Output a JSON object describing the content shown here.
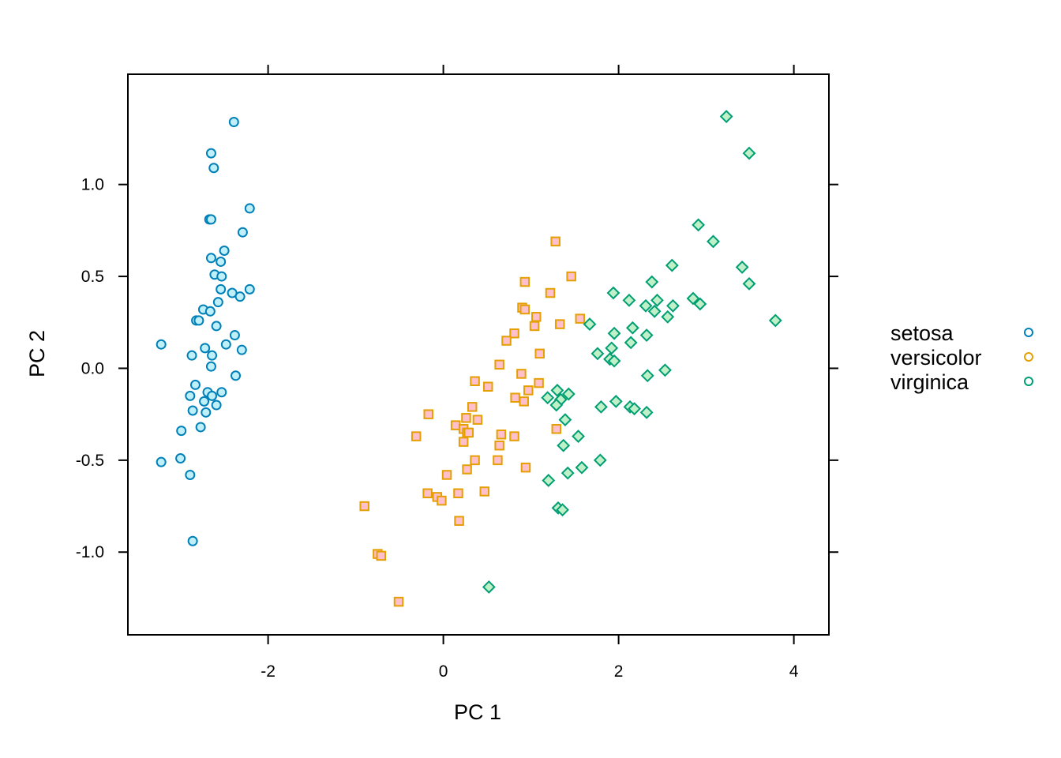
{
  "chart_data": {
    "type": "scatter",
    "xlabel": "PC 1",
    "ylabel": "PC 2",
    "xlim": [
      -3.6,
      4.4
    ],
    "ylim": [
      -1.45,
      1.6
    ],
    "x_ticks": [
      {
        "value": -2,
        "label": "-2"
      },
      {
        "value": 0,
        "label": "0"
      },
      {
        "value": 2,
        "label": "2"
      },
      {
        "value": 4,
        "label": "4"
      }
    ],
    "y_ticks": [
      {
        "value": -1.0,
        "label": "-1.0"
      },
      {
        "value": -0.5,
        "label": "-0.5"
      },
      {
        "value": 0.0,
        "label": "0.0"
      },
      {
        "value": 0.5,
        "label": "0.5"
      },
      {
        "value": 1.0,
        "label": "1.0"
      }
    ],
    "grid": false,
    "legend_position": "right",
    "legend": [
      {
        "label": "setosa",
        "series_index": 0
      },
      {
        "label": "versicolor",
        "series_index": 1
      },
      {
        "label": "virginica",
        "series_index": 2
      }
    ],
    "series": [
      {
        "name": "setosa",
        "marker": "circle",
        "color": "#0080B8",
        "fill": "#BFEFF8",
        "legend_fill": "none",
        "points": [
          [
            -3.22,
            0.13
          ],
          [
            -2.39,
            1.34
          ],
          [
            -2.65,
            1.17
          ],
          [
            -2.62,
            1.09
          ],
          [
            -2.21,
            0.87
          ],
          [
            -2.67,
            0.81
          ],
          [
            -2.65,
            0.81
          ],
          [
            -2.29,
            0.74
          ],
          [
            -2.5,
            0.64
          ],
          [
            -2.65,
            0.6
          ],
          [
            -2.54,
            0.58
          ],
          [
            -2.61,
            0.51
          ],
          [
            -2.53,
            0.5
          ],
          [
            -2.54,
            0.43
          ],
          [
            -2.21,
            0.43
          ],
          [
            -2.41,
            0.41
          ],
          [
            -2.32,
            0.39
          ],
          [
            -2.57,
            0.36
          ],
          [
            -2.74,
            0.32
          ],
          [
            -2.66,
            0.31
          ],
          [
            -2.82,
            0.26
          ],
          [
            -2.79,
            0.26
          ],
          [
            -2.59,
            0.23
          ],
          [
            -2.38,
            0.18
          ],
          [
            -2.72,
            0.11
          ],
          [
            -2.48,
            0.13
          ],
          [
            -2.3,
            0.1
          ],
          [
            -2.64,
            0.07
          ],
          [
            -2.87,
            0.07
          ],
          [
            -2.65,
            0.01
          ],
          [
            -2.37,
            -0.04
          ],
          [
            -2.83,
            -0.09
          ],
          [
            -2.69,
            -0.13
          ],
          [
            -2.53,
            -0.13
          ],
          [
            -2.64,
            -0.15
          ],
          [
            -2.89,
            -0.15
          ],
          [
            -2.73,
            -0.18
          ],
          [
            -2.59,
            -0.2
          ],
          [
            -2.86,
            -0.23
          ],
          [
            -2.71,
            -0.24
          ],
          [
            -2.77,
            -0.32
          ],
          [
            -2.99,
            -0.34
          ],
          [
            -3.0,
            -0.49
          ],
          [
            -2.89,
            -0.58
          ],
          [
            -3.22,
            -0.51
          ],
          [
            -2.86,
            -0.94
          ]
        ]
      },
      {
        "name": "versicolor",
        "marker": "square",
        "color": "#E69F00",
        "fill": "#FFC0CB",
        "legend_fill": "none",
        "points": [
          [
            1.28,
            0.69
          ],
          [
            0.93,
            0.47
          ],
          [
            1.46,
            0.5
          ],
          [
            1.22,
            0.41
          ],
          [
            0.9,
            0.33
          ],
          [
            0.93,
            0.32
          ],
          [
            1.06,
            0.28
          ],
          [
            1.56,
            0.27
          ],
          [
            1.33,
            0.24
          ],
          [
            1.04,
            0.23
          ],
          [
            0.81,
            0.19
          ],
          [
            0.72,
            0.15
          ],
          [
            1.1,
            0.08
          ],
          [
            0.64,
            0.02
          ],
          [
            0.89,
            -0.03
          ],
          [
            0.36,
            -0.07
          ],
          [
            1.09,
            -0.08
          ],
          [
            0.51,
            -0.1
          ],
          [
            0.97,
            -0.12
          ],
          [
            0.82,
            -0.16
          ],
          [
            0.92,
            -0.18
          ],
          [
            0.33,
            -0.21
          ],
          [
            -0.17,
            -0.25
          ],
          [
            0.26,
            -0.27
          ],
          [
            0.39,
            -0.28
          ],
          [
            0.14,
            -0.31
          ],
          [
            0.23,
            -0.33
          ],
          [
            1.29,
            -0.33
          ],
          [
            0.27,
            -0.35
          ],
          [
            0.29,
            -0.35
          ],
          [
            0.66,
            -0.36
          ],
          [
            0.81,
            -0.37
          ],
          [
            -0.31,
            -0.37
          ],
          [
            0.23,
            -0.4
          ],
          [
            0.64,
            -0.42
          ],
          [
            0.36,
            -0.5
          ],
          [
            0.62,
            -0.5
          ],
          [
            0.94,
            -0.54
          ],
          [
            0.27,
            -0.55
          ],
          [
            0.04,
            -0.58
          ],
          [
            0.47,
            -0.67
          ],
          [
            0.17,
            -0.68
          ],
          [
            -0.18,
            -0.68
          ],
          [
            -0.07,
            -0.7
          ],
          [
            -0.02,
            -0.72
          ],
          [
            0.18,
            -0.83
          ],
          [
            -0.9,
            -0.75
          ],
          [
            -0.75,
            -1.01
          ],
          [
            -0.71,
            -1.02
          ],
          [
            -0.51,
            -1.27
          ]
        ]
      },
      {
        "name": "virginica",
        "marker": "diamond",
        "color": "#009E73",
        "fill": "#BFF0C8",
        "legend_fill": "none",
        "points": [
          [
            3.23,
            1.37
          ],
          [
            3.49,
            1.17
          ],
          [
            2.91,
            0.78
          ],
          [
            3.08,
            0.69
          ],
          [
            2.61,
            0.56
          ],
          [
            3.41,
            0.55
          ],
          [
            2.38,
            0.47
          ],
          [
            3.49,
            0.46
          ],
          [
            1.94,
            0.41
          ],
          [
            2.12,
            0.37
          ],
          [
            2.44,
            0.37
          ],
          [
            2.85,
            0.38
          ],
          [
            2.93,
            0.35
          ],
          [
            2.31,
            0.34
          ],
          [
            2.62,
            0.34
          ],
          [
            2.41,
            0.31
          ],
          [
            2.56,
            0.28
          ],
          [
            3.79,
            0.26
          ],
          [
            1.67,
            0.24
          ],
          [
            2.16,
            0.22
          ],
          [
            1.95,
            0.19
          ],
          [
            2.32,
            0.18
          ],
          [
            1.76,
            0.08
          ],
          [
            2.14,
            0.14
          ],
          [
            1.92,
            0.11
          ],
          [
            1.9,
            0.05
          ],
          [
            1.95,
            0.04
          ],
          [
            2.33,
            -0.04
          ],
          [
            2.53,
            -0.01
          ],
          [
            1.3,
            -0.12
          ],
          [
            1.43,
            -0.14
          ],
          [
            1.19,
            -0.16
          ],
          [
            1.34,
            -0.17
          ],
          [
            1.97,
            -0.18
          ],
          [
            1.29,
            -0.2
          ],
          [
            1.8,
            -0.21
          ],
          [
            2.13,
            -0.21
          ],
          [
            2.18,
            -0.22
          ],
          [
            2.32,
            -0.24
          ],
          [
            1.39,
            -0.28
          ],
          [
            1.54,
            -0.37
          ],
          [
            1.37,
            -0.42
          ],
          [
            1.79,
            -0.5
          ],
          [
            1.58,
            -0.54
          ],
          [
            1.42,
            -0.57
          ],
          [
            1.2,
            -0.61
          ],
          [
            1.31,
            -0.76
          ],
          [
            1.36,
            -0.77
          ],
          [
            0.52,
            -1.19
          ]
        ]
      }
    ]
  }
}
